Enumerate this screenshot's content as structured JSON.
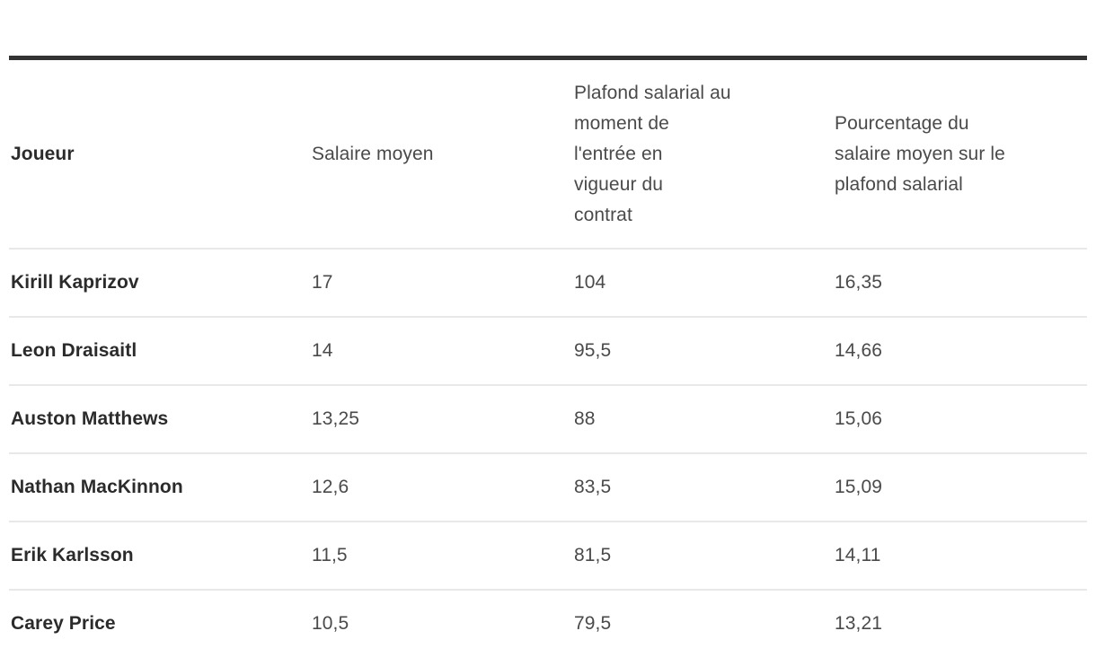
{
  "chart_data": {
    "type": "table",
    "title": "",
    "columns": [
      "Joueur",
      "Salaire moyen",
      "Plafond salarial au moment de l'entrée en vigueur du contrat",
      "Pourcentage du salaire moyen sur le plafond salarial"
    ],
    "rows": [
      [
        "Kirill Kaprizov",
        17,
        104,
        16.35
      ],
      [
        "Leon Draisaitl",
        14,
        95.5,
        14.66
      ],
      [
        "Auston Matthews",
        13.25,
        88,
        15.06
      ],
      [
        "Nathan MacKinnon",
        12.6,
        83.5,
        15.09
      ],
      [
        "Erik Karlsson",
        11.5,
        81.5,
        14.11
      ],
      [
        "Carey Price",
        10.5,
        79.5,
        13.21
      ]
    ]
  },
  "table": {
    "top_border_color": "#333333",
    "row_separator_color": "#e8e8e8",
    "name_text_color": "#2b2b2b",
    "value_text_color": "#4a4a4a",
    "columns": [
      {
        "label": "Joueur"
      },
      {
        "label": "Salaire moyen"
      },
      {
        "label": "Plafond salarial au\nmoment de\nl'entrée en\nvigueur du\ncontrat"
      },
      {
        "label": "Pourcentage du\nsalaire moyen sur le\nplafond salarial"
      }
    ],
    "rows": [
      {
        "joueur": "Kirill Kaprizov",
        "salaire_moyen": "17",
        "plafond": "104",
        "pourcentage": "16,35"
      },
      {
        "joueur": "Leon Draisaitl",
        "salaire_moyen": "14",
        "plafond": "95,5",
        "pourcentage": "14,66"
      },
      {
        "joueur": "Auston Matthews",
        "salaire_moyen": "13,25",
        "plafond": "88",
        "pourcentage": "15,06"
      },
      {
        "joueur": "Nathan MacKinnon",
        "salaire_moyen": "12,6",
        "plafond": "83,5",
        "pourcentage": "15,09"
      },
      {
        "joueur": "Erik Karlsson",
        "salaire_moyen": "11,5",
        "plafond": "81,5",
        "pourcentage": "14,11"
      },
      {
        "joueur": "Carey Price",
        "salaire_moyen": "10,5",
        "plafond": "79,5",
        "pourcentage": "13,21"
      }
    ]
  }
}
